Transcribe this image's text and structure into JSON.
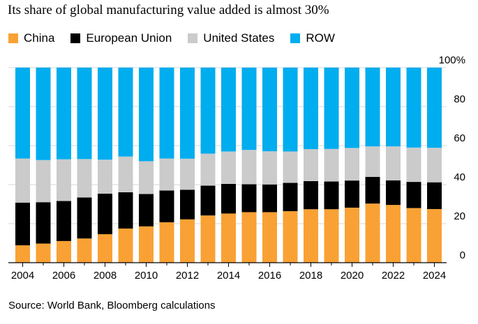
{
  "chart_data": {
    "type": "bar",
    "stacked": true,
    "title": "Its share of global manufacturing value added is almost 30%",
    "xlabel": "",
    "ylabel": "",
    "ylim": [
      0,
      100
    ],
    "y_ticks": [
      0,
      20,
      40,
      60,
      80,
      100
    ],
    "y_tick_labels": [
      "0",
      "20",
      "40",
      "60",
      "80",
      "100%"
    ],
    "x": [
      2004,
      2005,
      2006,
      2007,
      2008,
      2009,
      2010,
      2011,
      2012,
      2013,
      2014,
      2015,
      2016,
      2017,
      2018,
      2019,
      2020,
      2021,
      2022,
      2023,
      2024
    ],
    "x_tick_labels": [
      "2004",
      "2006",
      "2008",
      "2010",
      "2012",
      "2014",
      "2016",
      "2018",
      "2020",
      "2022",
      "2024"
    ],
    "grid": true,
    "legend_position": "top-left",
    "series": [
      {
        "name": "China",
        "color": "#f9a134",
        "values": [
          8.9,
          9.8,
          11.1,
          12.4,
          14.6,
          17.5,
          18.6,
          20.7,
          22.2,
          24.2,
          25.2,
          25.9,
          25.9,
          26.4,
          27.4,
          27.4,
          28.2,
          30.3,
          29.6,
          28.0,
          27.5
        ]
      },
      {
        "name": "European Union",
        "color": "#000000",
        "values": [
          21.9,
          21.2,
          20.5,
          21.0,
          20.8,
          18.6,
          16.6,
          16.3,
          15.2,
          15.3,
          15.2,
          14.3,
          14.2,
          14.5,
          14.4,
          14.2,
          13.9,
          13.7,
          12.6,
          13.4,
          13.7
        ]
      },
      {
        "name": "United States",
        "color": "#cbcbcb",
        "values": [
          22.6,
          21.6,
          21.4,
          19.7,
          17.4,
          18.3,
          16.8,
          16.4,
          15.9,
          16.4,
          16.6,
          17.6,
          17.0,
          16.1,
          16.4,
          16.7,
          16.7,
          15.6,
          17.4,
          17.6,
          17.7
        ]
      },
      {
        "name": "ROW",
        "color": "#00adef",
        "values": [
          46.6,
          47.4,
          47.0,
          46.9,
          47.2,
          45.6,
          48.0,
          46.6,
          46.7,
          44.1,
          43.0,
          42.2,
          42.9,
          43.0,
          41.8,
          41.7,
          41.2,
          40.4,
          40.4,
          41.0,
          41.1
        ]
      }
    ]
  },
  "source": "Source: World Bank, Bloomberg calculations"
}
